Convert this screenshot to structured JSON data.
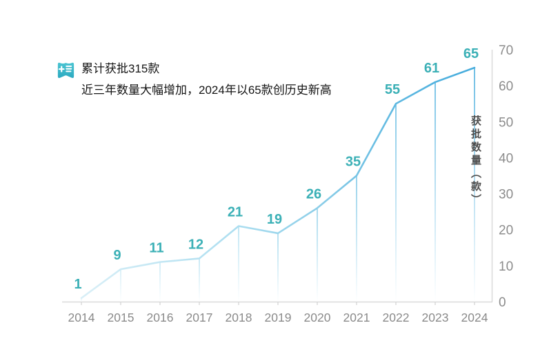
{
  "header": {
    "icon": "report-list-icon",
    "line1": "累计获批315款",
    "line2": "近三年数量大幅增加，2024年以65款创历史新高"
  },
  "chart_data": {
    "type": "line",
    "x": [
      "2014",
      "2015",
      "2016",
      "2017",
      "2018",
      "2019",
      "2020",
      "2021",
      "2022",
      "2023",
      "2024"
    ],
    "values": [
      1,
      9,
      11,
      12,
      21,
      19,
      26,
      35,
      55,
      61,
      65
    ],
    "title": "",
    "xlabel": "",
    "ylabel": "获批数量（款）",
    "ylim": [
      0,
      70
    ],
    "yticks": [
      0,
      10,
      20,
      30,
      40,
      50,
      60,
      70
    ],
    "grid": false,
    "legend_position": "none",
    "annotations": "value labels above each point",
    "colors": {
      "value_label": "#3BB0B6",
      "line_gradient": [
        "#D9EFF7",
        "#ACDEF0",
        "#8CCEE8",
        "#5FB9E1",
        "#44ABDC"
      ],
      "axis": "#D9D9D9",
      "tick_text": "#8C8C8C",
      "icon_teal_light": "#4CC5D2",
      "icon_teal_dark": "#2CA9C0"
    }
  }
}
